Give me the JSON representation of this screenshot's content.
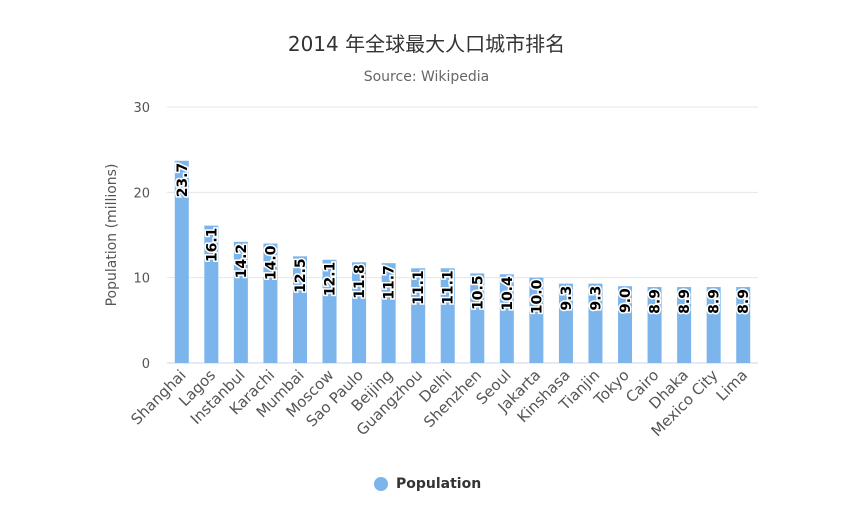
{
  "chart_data": {
    "type": "bar",
    "title": "2014 年全球最大人口城市排名",
    "subtitle": "Source: Wikipedia",
    "ylabel": "Population (millions)",
    "xlabel": "",
    "ylim": [
      0,
      30
    ],
    "yticks": [
      "0",
      "10",
      "20",
      "30"
    ],
    "grid": true,
    "legend_position": "bottom",
    "bar_color": "#7cb5ec",
    "categories": [
      "Shanghai",
      "Lagos",
      "Instanbul",
      "Karachi",
      "Mumbai",
      "Moscow",
      "Sao Paulo",
      "Beijing",
      "Guangzhou",
      "Delhi",
      "Shenzhen",
      "Seoul",
      "Jakarta",
      "Kinshasa",
      "Tianjin",
      "Tokyo",
      "Cairo",
      "Dhaka",
      "Mexico City",
      "Lima"
    ],
    "series": [
      {
        "name": "Population",
        "values": [
          23.7,
          16.1,
          14.2,
          14.0,
          12.5,
          12.1,
          11.8,
          11.7,
          11.1,
          11.1,
          10.5,
          10.4,
          10.0,
          9.3,
          9.3,
          9.0,
          8.9,
          8.9,
          8.9,
          8.9
        ],
        "labels": [
          "23.7",
          "16.1",
          "14.2",
          "14.0",
          "12.5",
          "12.1",
          "11.8",
          "11.7",
          "11.1",
          "11.1",
          "10.5",
          "10.4",
          "10.0",
          "9.3",
          "9.3",
          "9.0",
          "8.9",
          "8.9",
          "8.9",
          "8.9"
        ]
      }
    ]
  }
}
